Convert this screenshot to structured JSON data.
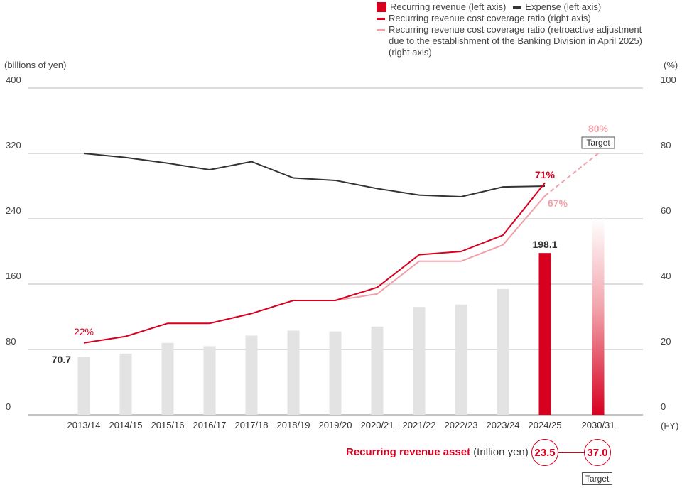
{
  "chart_data": {
    "type": "bar+line",
    "categories": [
      "2013/14",
      "2014/15",
      "2015/16",
      "2016/17",
      "2017/18",
      "2018/19",
      "2019/20",
      "2020/21",
      "2021/22",
      "2022/23",
      "2023/24",
      "2024/25",
      "2030/31"
    ],
    "x_unit": "(FY)",
    "left_axis": {
      "label": "(billions of yen)",
      "range": [
        0,
        400
      ],
      "ticks": [
        "0",
        "80",
        "160",
        "240",
        "320",
        "400"
      ]
    },
    "right_axis": {
      "label": "(%)",
      "range": [
        0,
        100
      ],
      "ticks": [
        "0",
        "20",
        "40",
        "60",
        "80",
        "100"
      ]
    },
    "grid": true,
    "legend_position": "top-right",
    "series": [
      {
        "name": "Recurring revenue (left axis)",
        "type": "bar",
        "axis": "left",
        "color": "#d7001f",
        "values": [
          70.7,
          75,
          88,
          84,
          97,
          103,
          102,
          108,
          132,
          135,
          154,
          198.1,
          240
        ],
        "highlight_color": "#d7001f",
        "past_color": "#e3e3e3"
      },
      {
        "name": "Expense (left axis)",
        "type": "line",
        "axis": "left",
        "color": "#333333",
        "values": [
          320,
          315,
          308,
          300,
          310,
          290,
          287,
          277,
          269,
          267,
          279,
          280,
          null
        ]
      },
      {
        "name": "Recurring revenue cost coverage ratio (right axis)",
        "type": "line",
        "axis": "right",
        "color": "#d7001f",
        "values": [
          22,
          24,
          28,
          28,
          31,
          35,
          35,
          39,
          49,
          50,
          55,
          71,
          null
        ]
      },
      {
        "name": "Recurring revenue cost coverage ratio (retroactive adjustment due to the establishment of the Banking Division in April 2025)(right axis)",
        "type": "line",
        "axis": "right",
        "color": "#f0a0a8",
        "values": [
          null,
          null,
          null,
          null,
          null,
          null,
          35,
          37,
          47,
          47,
          52,
          67,
          80
        ]
      }
    ],
    "data_labels": {
      "bar_first": "70.7",
      "bar_2024": "198.1",
      "ratio_first": "22%",
      "ratio_2024": "71%",
      "adjusted_2024": "67%",
      "target_ratio": "80%",
      "target_tag": "Target"
    }
  },
  "asset": {
    "title": "Recurring revenue asset",
    "unit": "(trillion yen)",
    "current": "23.5",
    "target": "37.0",
    "target_tag": "Target"
  }
}
